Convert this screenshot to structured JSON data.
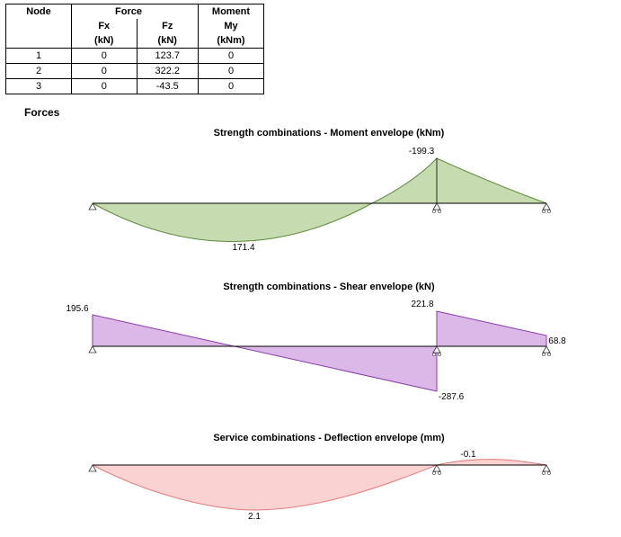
{
  "table": {
    "headers": {
      "node": "Node",
      "force": "Force",
      "moment": "Moment",
      "fx": "Fx",
      "fz": "Fz",
      "my": "My",
      "fx_unit": "(kN)",
      "fz_unit": "(kN)",
      "my_unit": "(kNm)"
    },
    "rows": [
      {
        "node": "1",
        "fx": "0",
        "fz": "123.7",
        "my": "0"
      },
      {
        "node": "2",
        "fx": "0",
        "fz": "322.2",
        "my": "0"
      },
      {
        "node": "3",
        "fx": "0",
        "fz": "-43.5",
        "my": "0"
      }
    ]
  },
  "forces_label": "Forces",
  "colors": {
    "moment_fill": "#c6dcb0",
    "moment_stroke": "#5c8a3a",
    "shear_fill": "#dcb8e8",
    "shear_stroke": "#8a3aa8",
    "deflection_fill": "#fad2d2",
    "deflection_stroke": "#e07a7a"
  },
  "chart_data": [
    {
      "type": "area",
      "title": "Strength combinations - Moment envelope (kNm)",
      "annotations": [
        {
          "text": "-199.3",
          "value": -199.3
        },
        {
          "text": "171.4",
          "value": 171.4
        }
      ]
    },
    {
      "type": "area",
      "title": "Strength combinations - Shear envelope (kN)",
      "annotations": [
        {
          "text": "195.6",
          "value": 195.6
        },
        {
          "text": "221.8",
          "value": 221.8
        },
        {
          "text": "68.8",
          "value": 68.8
        },
        {
          "text": "-287.6",
          "value": -287.6
        }
      ]
    },
    {
      "type": "area",
      "title": "Service combinations - Deflection envelope (mm)",
      "annotations": [
        {
          "text": "-0.1",
          "value": -0.1
        },
        {
          "text": "2.1",
          "value": 2.1
        }
      ]
    }
  ]
}
